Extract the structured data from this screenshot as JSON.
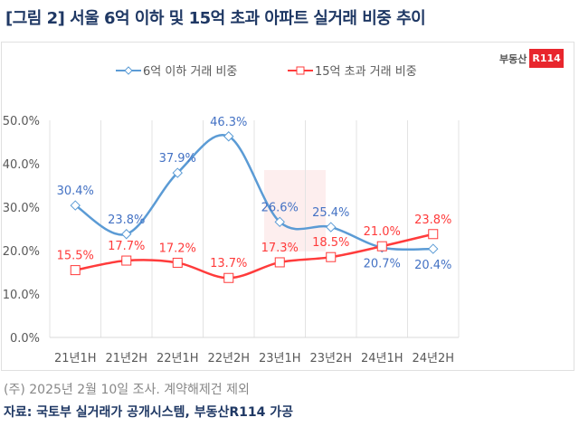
{
  "title": "[그림 2] 서울 6억 이하 및 15억 초과 아파트 실거래 비중 추이",
  "logo": {
    "text": "부동산",
    "badge": "R114"
  },
  "note": "(주) 2025년 2월 10일 조사. 계약해제건 제외",
  "source": "자료: 국토부 실거래가 공개시스템, 부동산R114 가공",
  "chart_data": {
    "type": "line",
    "categories": [
      "21년1H",
      "21년2H",
      "22년1H",
      "22년2H",
      "23년1H",
      "23년2H",
      "24년1H",
      "24년2H"
    ],
    "series": [
      {
        "name": "6억 이하 거래 비중",
        "color": "#5b9bd5",
        "label_color": "#4472c4",
        "marker": "diamond",
        "values": [
          30.4,
          23.8,
          37.9,
          46.3,
          26.6,
          25.4,
          20.7,
          20.4
        ]
      },
      {
        "name": "15억 초과 거래 비중",
        "color": "#ff3b3b",
        "label_color": "#ff3b3b",
        "marker": "square",
        "values": [
          15.5,
          17.7,
          17.2,
          13.7,
          17.3,
          18.5,
          21.0,
          23.8
        ]
      }
    ],
    "yticks": [
      "0.0%",
      "10.0%",
      "20.0%",
      "30.0%",
      "40.0%",
      "50.0%"
    ],
    "ylim": [
      0,
      50
    ],
    "grid": "vertical",
    "legend": "top",
    "smooth": true
  }
}
